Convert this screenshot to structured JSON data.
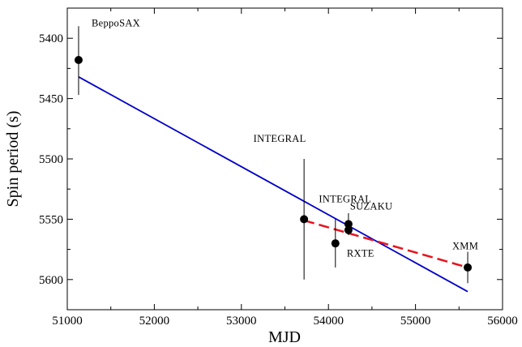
{
  "chart_data": {
    "type": "scatter",
    "title": "",
    "xlabel": "MJD",
    "ylabel": "Spin period (s)",
    "xlim": [
      51000,
      56000
    ],
    "ylim": [
      5625,
      5375
    ],
    "y_axis_inverted": true,
    "grid": false,
    "x_ticks": [
      "51000",
      "52000",
      "53000",
      "54000",
      "55000",
      "56000"
    ],
    "y_ticks": [
      "5400",
      "5450",
      "5500",
      "5550",
      "5600"
    ],
    "points": [
      {
        "label": "BeppoSAX",
        "x": 51130,
        "y": 5418,
        "err_low": 5390,
        "err_high": 5447
      },
      {
        "label": "INTEGRAL",
        "x": 53720,
        "y": 5550,
        "err_low": 5500,
        "err_high": 5600
      },
      {
        "label": "INTEGRAL",
        "x": 54080,
        "y": 5570,
        "err_low": 5550,
        "err_high": 5590
      },
      {
        "label": "SUZAKU",
        "x": 54230,
        "y": 5554,
        "err_low": 5545,
        "err_high": 5563
      },
      {
        "label": "RXTE",
        "x": 54230,
        "y": 5559,
        "err_low": 5555,
        "err_high": 5563
      },
      {
        "label": "XMM",
        "x": 55600,
        "y": 5590,
        "err_low": 5577,
        "err_high": 5603
      }
    ],
    "fits": [
      {
        "style": "solid",
        "color": "#0000cc",
        "x": [
          51130,
          55600
        ],
        "y": [
          5432,
          5610
        ]
      },
      {
        "style": "dashed",
        "color": "#e8141e",
        "x": [
          53720,
          55600
        ],
        "y": [
          5551,
          5590
        ]
      }
    ]
  },
  "annotations": [
    {
      "text": "BeppoSAX",
      "x": 51130,
      "y": 5390
    },
    {
      "text": "INTEGRAL",
      "x": 53720,
      "y": 5486
    },
    {
      "text": "INTEGRAL",
      "x": 54080,
      "y": 5536
    },
    {
      "text": "SUZAKU",
      "x": 54230,
      "y": 5542
    },
    {
      "text": "RXTE",
      "x": 54230,
      "y": 5581
    },
    {
      "text": "XMM",
      "x": 55600,
      "y": 5575
    }
  ]
}
